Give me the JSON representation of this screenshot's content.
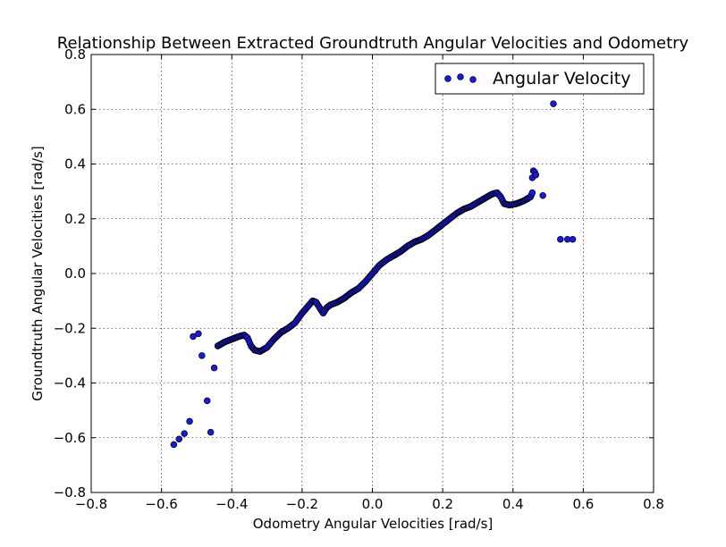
{
  "chart_data": {
    "type": "scatter",
    "title": "Relationship Between Extracted Groundtruth Angular Velocities and Odometry",
    "xlabel": "Odometry Angular Velocities [rad/s]",
    "ylabel": "Groundtruth Angular Velocities [rad/s]",
    "xlim": [
      -0.8,
      0.8
    ],
    "ylim": [
      -0.8,
      0.8
    ],
    "x_ticks": [
      -0.8,
      -0.6,
      -0.4,
      -0.2,
      0.0,
      0.2,
      0.4,
      0.6,
      0.8
    ],
    "y_ticks": [
      -0.8,
      -0.6,
      -0.4,
      -0.2,
      0.0,
      0.2,
      0.4,
      0.6,
      0.8
    ],
    "x_tick_labels": [
      "−0.8",
      "−0.6",
      "−0.4",
      "−0.2",
      "0.0",
      "0.2",
      "0.4",
      "0.6",
      "0.8"
    ],
    "y_tick_labels": [
      "−0.8",
      "−0.6",
      "−0.4",
      "−0.2",
      "0.0",
      "0.2",
      "0.4",
      "0.6",
      "0.8"
    ],
    "grid": true,
    "legend_position": "top-right",
    "marker_color": "#1a1adb",
    "series": [
      {
        "name": "Angular Velocity",
        "curve_points": [
          [
            -0.44,
            -0.265
          ],
          [
            -0.42,
            -0.25
          ],
          [
            -0.4,
            -0.24
          ],
          [
            -0.38,
            -0.23
          ],
          [
            -0.365,
            -0.225
          ],
          [
            -0.355,
            -0.235
          ],
          [
            -0.345,
            -0.265
          ],
          [
            -0.335,
            -0.28
          ],
          [
            -0.32,
            -0.285
          ],
          [
            -0.3,
            -0.27
          ],
          [
            -0.28,
            -0.24
          ],
          [
            -0.26,
            -0.215
          ],
          [
            -0.24,
            -0.2
          ],
          [
            -0.22,
            -0.18
          ],
          [
            -0.2,
            -0.145
          ],
          [
            -0.18,
            -0.115
          ],
          [
            -0.17,
            -0.1
          ],
          [
            -0.16,
            -0.105
          ],
          [
            -0.15,
            -0.125
          ],
          [
            -0.14,
            -0.145
          ],
          [
            -0.13,
            -0.125
          ],
          [
            -0.12,
            -0.115
          ],
          [
            -0.1,
            -0.105
          ],
          [
            -0.08,
            -0.09
          ],
          [
            -0.06,
            -0.07
          ],
          [
            -0.04,
            -0.055
          ],
          [
            -0.02,
            -0.03
          ],
          [
            0.0,
            0.0
          ],
          [
            0.02,
            0.03
          ],
          [
            0.04,
            0.05
          ],
          [
            0.06,
            0.065
          ],
          [
            0.08,
            0.08
          ],
          [
            0.1,
            0.1
          ],
          [
            0.12,
            0.115
          ],
          [
            0.14,
            0.125
          ],
          [
            0.16,
            0.14
          ],
          [
            0.18,
            0.16
          ],
          [
            0.2,
            0.18
          ],
          [
            0.22,
            0.2
          ],
          [
            0.24,
            0.22
          ],
          [
            0.26,
            0.235
          ],
          [
            0.28,
            0.245
          ],
          [
            0.3,
            0.26
          ],
          [
            0.32,
            0.275
          ],
          [
            0.34,
            0.29
          ],
          [
            0.355,
            0.295
          ],
          [
            0.365,
            0.28
          ],
          [
            0.375,
            0.255
          ],
          [
            0.39,
            0.25
          ],
          [
            0.41,
            0.255
          ],
          [
            0.43,
            0.265
          ],
          [
            0.45,
            0.28
          ],
          [
            0.455,
            0.295
          ]
        ],
        "outliers": [
          [
            -0.565,
            -0.625
          ],
          [
            -0.55,
            -0.605
          ],
          [
            -0.535,
            -0.585
          ],
          [
            -0.52,
            -0.54
          ],
          [
            -0.51,
            -0.23
          ],
          [
            -0.495,
            -0.22
          ],
          [
            -0.485,
            -0.3
          ],
          [
            -0.47,
            -0.465
          ],
          [
            -0.46,
            -0.58
          ],
          [
            -0.45,
            -0.345
          ],
          [
            0.455,
            0.35
          ],
          [
            0.458,
            0.375
          ],
          [
            0.462,
            0.37
          ],
          [
            0.465,
            0.36
          ],
          [
            0.485,
            0.285
          ],
          [
            0.515,
            0.62
          ],
          [
            0.535,
            0.125
          ],
          [
            0.555,
            0.125
          ],
          [
            0.57,
            0.125
          ]
        ]
      }
    ]
  }
}
